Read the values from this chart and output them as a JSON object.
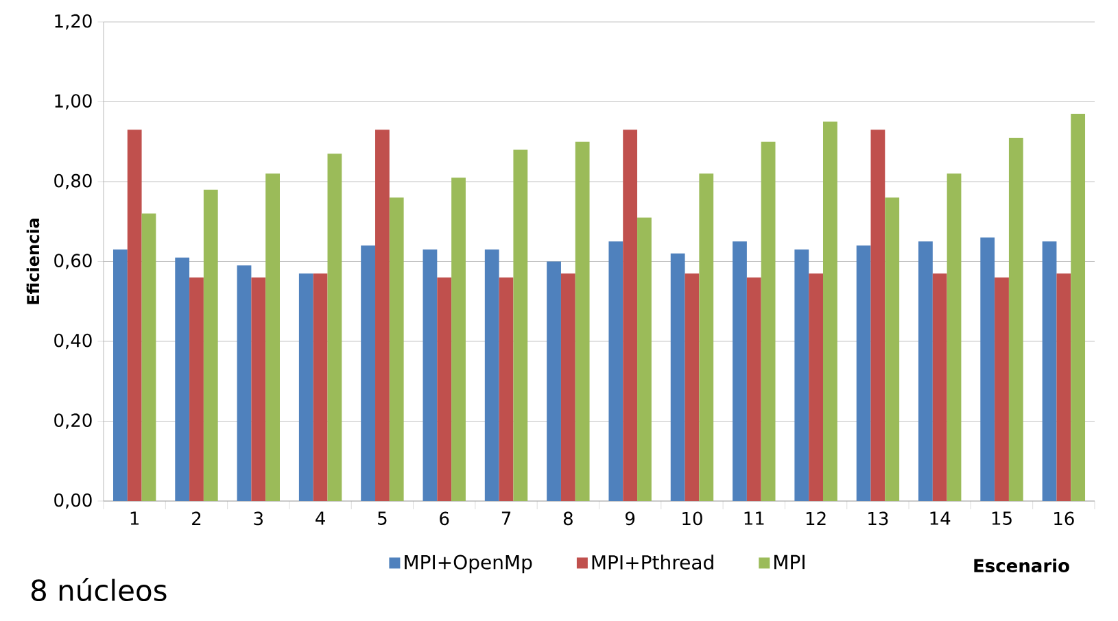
{
  "chart_data": {
    "type": "bar",
    "xlabel": "Escenario",
    "ylabel": "Eficiencia",
    "categories": [
      "1",
      "2",
      "3",
      "4",
      "5",
      "6",
      "7",
      "8",
      "9",
      "10",
      "11",
      "12",
      "13",
      "14",
      "15",
      "16"
    ],
    "series": [
      {
        "name": "MPI+OpenMp",
        "color": "#4f81bd",
        "values": [
          0.63,
          0.61,
          0.59,
          0.57,
          0.64,
          0.63,
          0.63,
          0.6,
          0.65,
          0.62,
          0.65,
          0.63,
          0.64,
          0.65,
          0.66,
          0.65
        ]
      },
      {
        "name": "MPI+Pthread",
        "color": "#c0504d",
        "values": [
          0.93,
          0.56,
          0.56,
          0.57,
          0.93,
          0.56,
          0.56,
          0.57,
          0.93,
          0.57,
          0.56,
          0.57,
          0.93,
          0.57,
          0.56,
          0.57
        ]
      },
      {
        "name": "MPI",
        "color": "#9bbb59",
        "values": [
          0.72,
          0.78,
          0.82,
          0.87,
          0.76,
          0.81,
          0.88,
          0.9,
          0.71,
          0.82,
          0.9,
          0.95,
          0.76,
          0.82,
          0.91,
          0.97
        ]
      }
    ],
    "ylim": [
      0,
      1.2
    ],
    "yticks": [
      {
        "value": 0,
        "label": "0,00"
      },
      {
        "value": 0.2,
        "label": "0,20"
      },
      {
        "value": 0.4,
        "label": "0,40"
      },
      {
        "value": 0.6,
        "label": "0,60"
      },
      {
        "value": 0.8,
        "label": "0,80"
      },
      {
        "value": 1.0,
        "label": "1,00"
      },
      {
        "value": 1.2,
        "label": "1,20"
      }
    ],
    "grid": "y",
    "legend": "bottom",
    "annotations": [
      "8 núcleos"
    ]
  }
}
